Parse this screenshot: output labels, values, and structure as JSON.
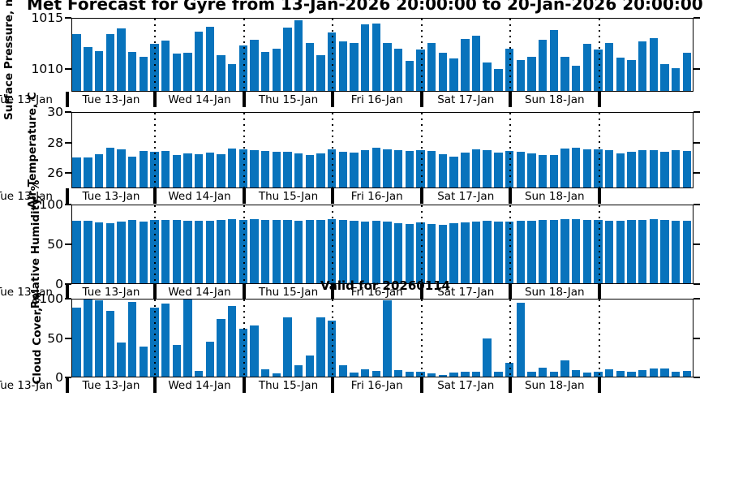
{
  "title": "Met Forecast for Gyre from 13-Jan-2026 20:00:00 to 20-Jan-2026 20:00:00",
  "valid_label": "Valid for 20260114",
  "colors": {
    "bar": "#0873bc",
    "axis": "#000000",
    "background": "#ffffff"
  },
  "x_axis": {
    "clipped_first_label": "Tue 13-Jan",
    "day_labels": [
      "Tue 13-Jan",
      "Wed 14-Jan",
      "Thu 15-Jan",
      "Fri 16-Jan",
      "Sat 17-Jan",
      "Sun 18-Jan"
    ]
  },
  "chart_data": [
    {
      "type": "bar",
      "name": "surface-pressure",
      "ylabel": "Surface Pressure, mb",
      "ylim": [
        1007.8,
        1015
      ],
      "yticks": [
        1010,
        1015
      ],
      "ytick_labels": [
        "1010",
        "1015"
      ],
      "grid": "vertical-day-boundaries-dotted",
      "values": [
        1013.5,
        1012.2,
        1011.8,
        1013.5,
        1014.0,
        1011.7,
        1011.2,
        1012.5,
        1012.8,
        1011.5,
        1011.6,
        1013.7,
        1014.2,
        1011.4,
        1010.5,
        1012.3,
        1012.9,
        1011.7,
        1012.0,
        1014.1,
        1014.8,
        1012.6,
        1011.4,
        1013.6,
        1012.7,
        1012.6,
        1014.4,
        1014.5,
        1012.6,
        1012.0,
        1010.8,
        1011.9,
        1012.6,
        1011.6,
        1011.0,
        1013.0,
        1013.3,
        1010.6,
        1010.0,
        1012.0,
        1010.9,
        1011.2,
        1012.9,
        1013.9,
        1011.2,
        1010.3,
        1012.5,
        1011.9,
        1012.6,
        1011.1,
        1010.9,
        1012.7,
        1013.1,
        1010.5,
        1010.1,
        1011.6
      ]
    },
    {
      "type": "bar",
      "name": "air-temperature",
      "ylabel": "Air Temperature, C",
      "ylim": [
        25,
        30
      ],
      "yticks": [
        26,
        28,
        30
      ],
      "ytick_labels": [
        "26",
        "28",
        "30"
      ],
      "grid": "vertical-day-boundaries-dotted",
      "values": [
        27.0,
        27.0,
        27.25,
        27.65,
        27.55,
        27.05,
        27.45,
        27.4,
        27.45,
        27.15,
        27.3,
        27.25,
        27.35,
        27.25,
        27.6,
        27.55,
        27.5,
        27.45,
        27.4,
        27.4,
        27.3,
        27.15,
        27.3,
        27.55,
        27.4,
        27.35,
        27.5,
        27.65,
        27.55,
        27.5,
        27.45,
        27.5,
        27.45,
        27.25,
        27.05,
        27.35,
        27.55,
        27.5,
        27.35,
        27.45,
        27.4,
        27.3,
        27.2,
        27.15,
        27.6,
        27.65,
        27.55,
        27.55,
        27.5,
        27.3,
        27.4,
        27.5,
        27.5,
        27.4,
        27.5,
        27.45
      ]
    },
    {
      "type": "bar",
      "name": "relative-humidity",
      "ylabel": "Relative Humidity, %",
      "ylim": [
        0,
        100
      ],
      "yticks": [
        0,
        50,
        100
      ],
      "ytick_labels": [
        "0",
        "50",
        "100"
      ],
      "grid": "vertical-day-boundaries-dotted",
      "values": [
        80,
        80,
        78,
        77,
        79,
        81,
        79,
        81,
        81,
        81,
        80,
        80,
        80,
        81,
        82,
        81,
        82,
        81,
        81,
        81,
        80,
        81,
        81,
        82,
        81,
        80,
        79,
        80,
        79,
        77,
        76,
        78,
        76,
        75,
        77,
        78,
        79,
        80,
        79,
        79,
        80,
        80,
        81,
        81,
        82,
        82,
        81,
        81,
        80,
        80,
        81,
        81,
        82,
        81,
        80,
        80
      ]
    },
    {
      "type": "bar",
      "name": "cloud-cover",
      "ylabel": "Cloud Cover, %",
      "ylim": [
        0,
        100
      ],
      "yticks": [
        0,
        50,
        100
      ],
      "ytick_labels": [
        "0",
        "50",
        "100"
      ],
      "grid": "vertical-day-boundaries-dotted",
      "values": [
        90,
        100,
        99,
        85,
        44,
        97,
        39,
        90,
        95,
        41,
        100,
        7,
        45,
        75,
        92,
        62,
        66,
        10,
        4,
        77,
        15,
        27,
        77,
        73,
        15,
        5,
        10,
        7,
        99,
        8,
        6,
        6,
        4,
        2,
        5,
        6,
        6,
        50,
        6,
        18,
        96,
        6,
        12,
        6,
        21,
        8,
        5,
        6,
        9,
        7,
        6,
        8,
        11,
        11,
        6,
        7
      ]
    }
  ]
}
